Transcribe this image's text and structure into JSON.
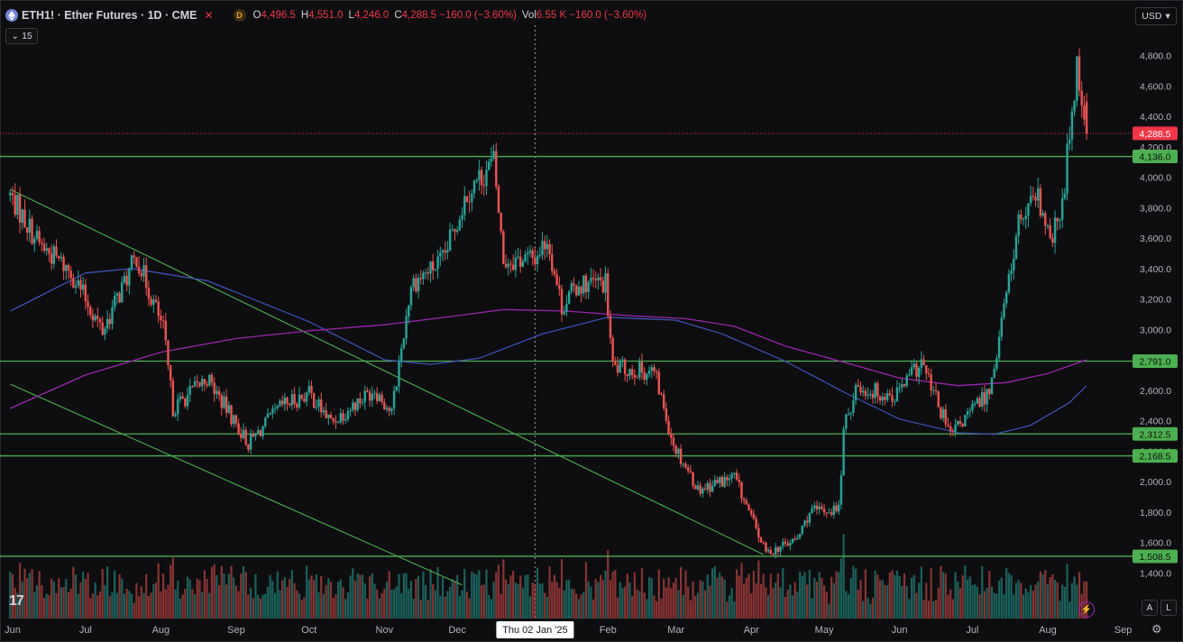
{
  "header": {
    "symbol_icon": "ethereum-icon",
    "title": "ETH1! · Ether Futures · 1D · CME",
    "source_badge": "D",
    "ohlc": [
      {
        "key": "O",
        "value": "4,496.5"
      },
      {
        "key": "H",
        "value": "4,551.0"
      },
      {
        "key": "L",
        "value": "4,246.0"
      },
      {
        "key": "C",
        "value": "4,288.5 −160.0 (−3.60%)"
      },
      {
        "key": "Vol",
        "value": "6.55 K −160.0 (−3.60%)"
      }
    ],
    "indicator_count": "15",
    "currency": "USD"
  },
  "footer": {
    "crosshair_date": "Thu 02 Jan '25",
    "auto_button": "A",
    "log_button": "L",
    "logo_text": "17"
  },
  "colors": {
    "background": "#0e0e10",
    "up": "#26a69a",
    "down": "#ef5350",
    "level_lines": "#4caf50",
    "ma_short": "#3f51b5",
    "ma_long": "#9c27b0",
    "last_price": "#f23645"
  },
  "chart_data": {
    "type": "candlestick",
    "title": "ETH1! · Ether Futures · 1D · CME",
    "y_axis": {
      "ticks": [
        1400,
        1600,
        1800,
        2000,
        2200,
        2400,
        2600,
        2800,
        3000,
        3200,
        3400,
        3600,
        3800,
        4000,
        4200,
        4400,
        4600,
        4800
      ],
      "tick_labels": [
        "1,400.0",
        "1,600.0",
        "1,800.0",
        "2,000.0",
        "2,200.0",
        "2,400.0",
        "2,600.0",
        "2,800.0",
        "3,000.0",
        "3,200.0",
        "3,400.0",
        "3,600.0",
        "3,800.0",
        "4,000.0",
        "4,200.0",
        "4,400.0",
        "4,600.0",
        "4,800.0"
      ],
      "range": [
        1280,
        4900
      ],
      "side": "right"
    },
    "x_axis": {
      "labels": [
        "Jun",
        "Jul",
        "Aug",
        "Sep",
        "Oct",
        "Nov",
        "Dec",
        "Thu 02 Jan '25",
        "Feb",
        "Mar",
        "Apr",
        "May",
        "Jun",
        "Jul",
        "Aug",
        "Sep"
      ]
    },
    "last_price": {
      "value": 4288.5,
      "label": "4,288.5"
    },
    "horizontal_levels": [
      {
        "value": 4136.0,
        "label": "4,136.0"
      },
      {
        "value": 2791.0,
        "label": "2,791.0"
      },
      {
        "value": 2312.5,
        "label": "2,312.5"
      },
      {
        "value": 2168.5,
        "label": "2,168.5"
      },
      {
        "value": 1508.5,
        "label": "1,508.5"
      }
    ],
    "trendlines": [
      {
        "from": {
          "date": "2024-05-31",
          "price": 3920
        },
        "to": {
          "date": "2025-04-06",
          "price": 1520
        }
      },
      {
        "from": {
          "date": "2024-05-31",
          "price": 2640
        },
        "to": {
          "date": "2024-12-03",
          "price": 1320
        }
      }
    ],
    "candles": [],
    "moving_averages": [
      {
        "name": "",
        "color": "#3f51b5",
        "points": [
          [
            "2024-05-31",
            3120
          ],
          [
            "2024-07-01",
            3370
          ],
          [
            "2024-07-20",
            3400
          ],
          [
            "2024-08-20",
            3320
          ],
          [
            "2024-10-01",
            3050
          ],
          [
            "2024-11-01",
            2800
          ],
          [
            "2024-11-20",
            2770
          ],
          [
            "2024-12-10",
            2810
          ],
          [
            "2025-01-05",
            2970
          ],
          [
            "2025-02-01",
            3080
          ],
          [
            "2025-03-01",
            3060
          ],
          [
            "2025-03-20",
            2970
          ],
          [
            "2025-04-15",
            2790
          ],
          [
            "2025-05-10",
            2580
          ],
          [
            "2025-06-01",
            2410
          ],
          [
            "2025-06-25",
            2320
          ],
          [
            "2025-07-10",
            2310
          ],
          [
            "2025-07-25",
            2370
          ],
          [
            "2025-08-10",
            2520
          ],
          [
            "2025-08-17",
            2630
          ]
        ]
      },
      {
        "name": "",
        "color": "#9c27b0",
        "points": [
          [
            "2024-05-31",
            2480
          ],
          [
            "2024-07-01",
            2700
          ],
          [
            "2024-08-01",
            2850
          ],
          [
            "2024-09-01",
            2940
          ],
          [
            "2024-10-01",
            2990
          ],
          [
            "2024-11-01",
            3030
          ],
          [
            "2024-12-01",
            3090
          ],
          [
            "2024-12-20",
            3130
          ],
          [
            "2025-01-15",
            3120
          ],
          [
            "2025-02-10",
            3090
          ],
          [
            "2025-03-05",
            3070
          ],
          [
            "2025-03-25",
            3020
          ],
          [
            "2025-04-15",
            2890
          ],
          [
            "2025-05-10",
            2780
          ],
          [
            "2025-06-01",
            2680
          ],
          [
            "2025-06-25",
            2630
          ],
          [
            "2025-07-15",
            2650
          ],
          [
            "2025-08-01",
            2710
          ],
          [
            "2025-08-17",
            2800
          ]
        ]
      }
    ],
    "volume_profile": "vertical bars along bottom, green for up days, red for down days"
  }
}
